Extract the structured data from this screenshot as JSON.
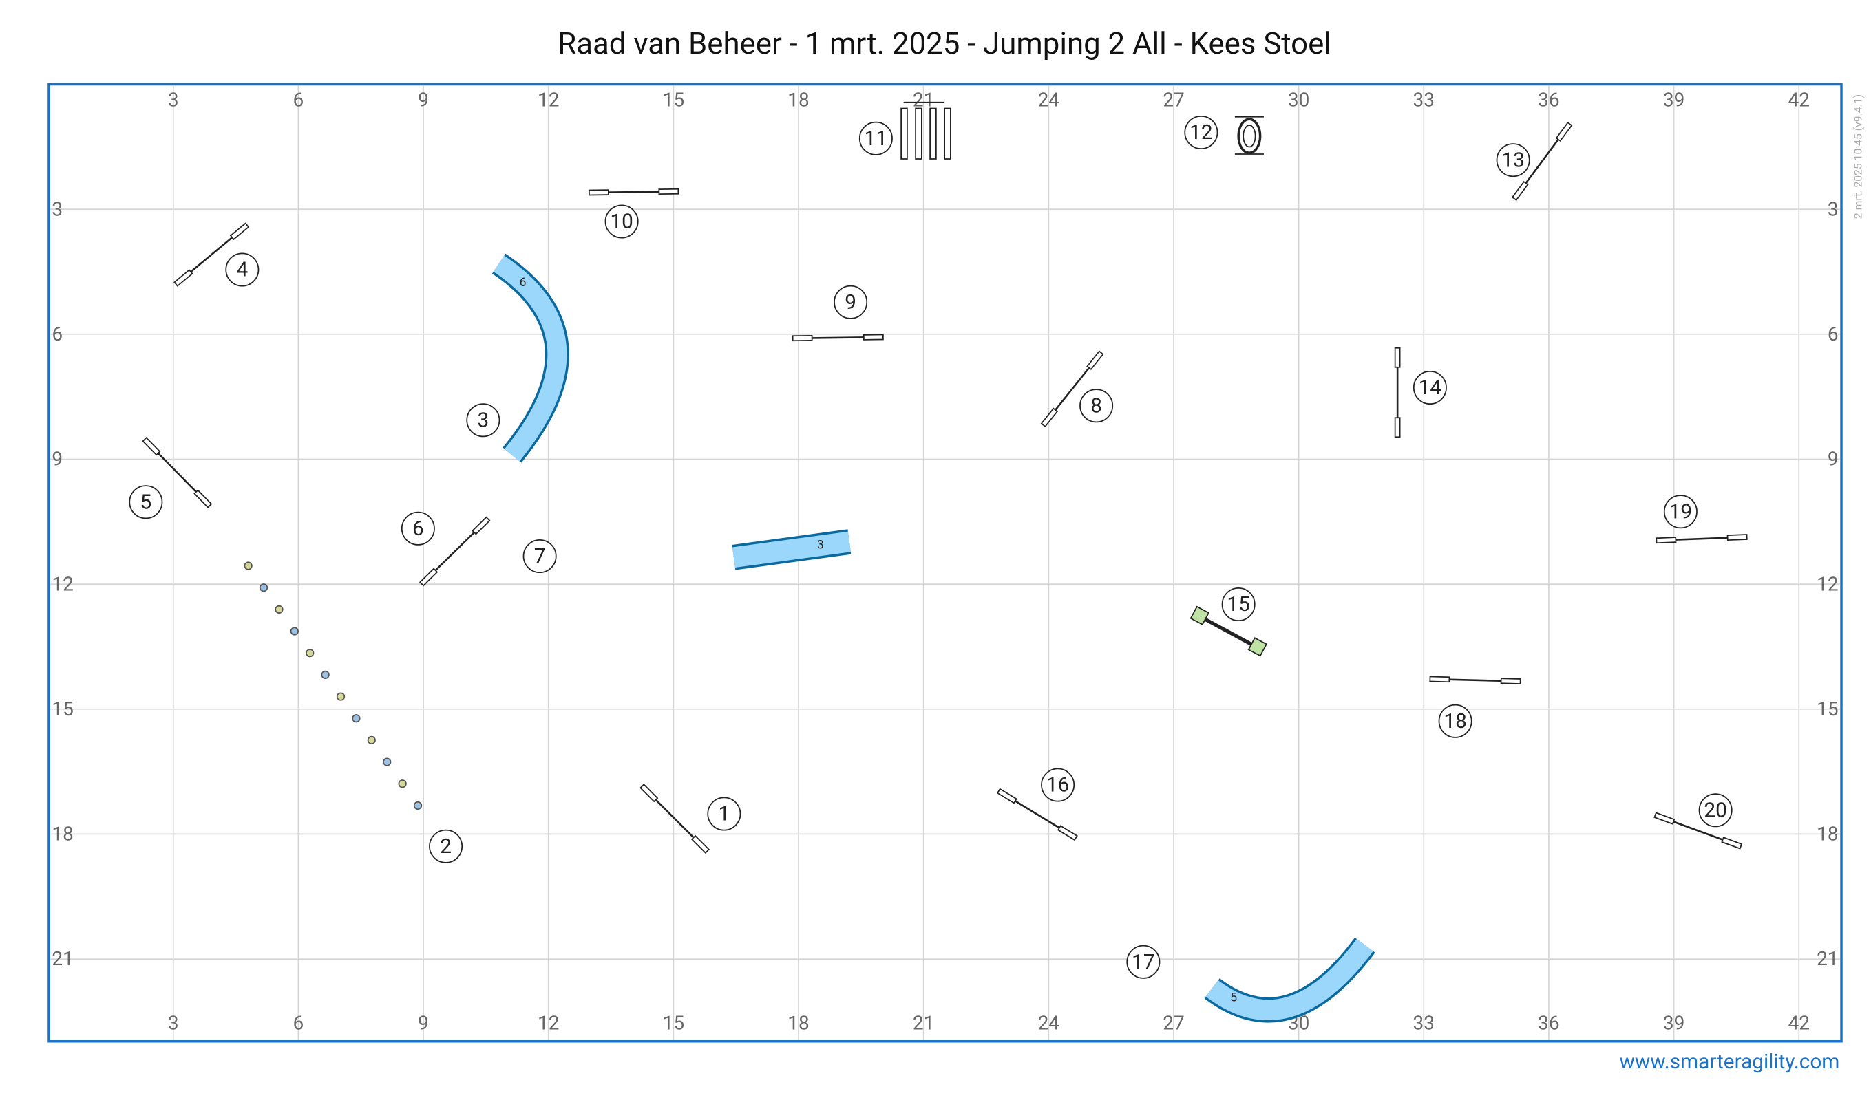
{
  "title": "Raad van Beheer - 1 mrt. 2025 - Jumping 2 All - Kees Stoel",
  "version": "2 mrt. 2025 10:45 (v9.4.1)",
  "website": "www.smarteragility.com",
  "grid": {
    "x_ticks": [
      3,
      6,
      9,
      12,
      15,
      18,
      21,
      24,
      27,
      30,
      33,
      36,
      39,
      42
    ],
    "y_ticks": [
      3,
      6,
      9,
      12,
      15,
      18,
      21
    ]
  },
  "obstacles": [
    {
      "number": 1
    },
    {
      "number": 2
    },
    {
      "number": 3
    },
    {
      "number": 4
    },
    {
      "number": 5
    },
    {
      "number": 6
    },
    {
      "number": 7
    },
    {
      "number": 8
    },
    {
      "number": 9
    },
    {
      "number": 10
    },
    {
      "number": 11
    },
    {
      "number": 12
    },
    {
      "number": 13
    },
    {
      "number": 14
    },
    {
      "number": 15
    },
    {
      "number": 16
    },
    {
      "number": 17
    },
    {
      "number": 18
    },
    {
      "number": 19
    },
    {
      "number": 20
    }
  ],
  "tunnels": [
    {
      "label": "6"
    },
    {
      "label": "3"
    },
    {
      "label": "5"
    }
  ]
}
